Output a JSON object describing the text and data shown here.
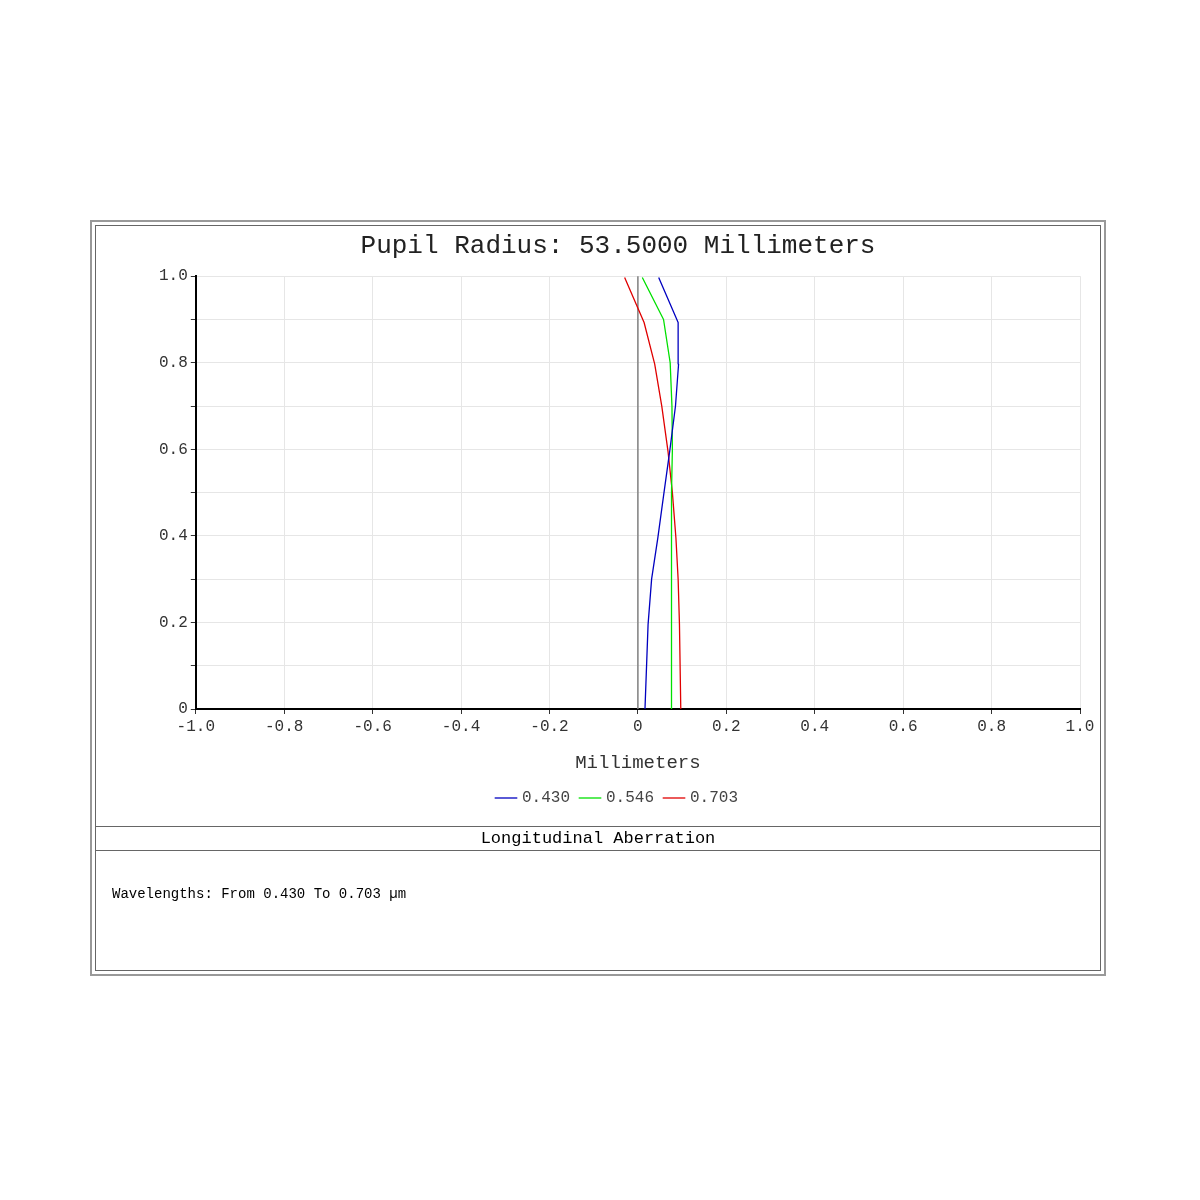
{
  "chart_data": {
    "type": "line",
    "title": "Pupil Radius: 53.5000 Millimeters",
    "xlabel": "Millimeters",
    "xlim": [
      -1,
      1
    ],
    "xticks": [
      {
        "value": -1,
        "label": "-1.0"
      },
      {
        "value": -0.8,
        "label": "-0.8"
      },
      {
        "value": -0.6,
        "label": "-0.6"
      },
      {
        "value": -0.4,
        "label": "-0.4"
      },
      {
        "value": -0.2,
        "label": "-0.2"
      },
      0,
      {
        "value": 0.2,
        "label": "0.2"
      },
      {
        "value": 0.4,
        "label": "0.4"
      },
      {
        "value": 0.6,
        "label": "0.6"
      },
      {
        "value": 0.8,
        "label": "0.8"
      },
      {
        "value": 1,
        "label": "1.0"
      }
    ],
    "ylim": [
      0,
      1
    ],
    "yticks": [
      0,
      {
        "value": 0.1,
        "label": null
      },
      {
        "value": 0.2,
        "label": "0.2"
      },
      {
        "value": 0.3,
        "label": null
      },
      {
        "value": 0.4,
        "label": "0.4"
      },
      {
        "value": 0.5,
        "label": null
      },
      {
        "value": 0.6,
        "label": "0.6"
      },
      {
        "value": 0.7,
        "label": null
      },
      {
        "value": 0.8,
        "label": "0.8"
      },
      {
        "value": 0.9,
        "label": null
      },
      {
        "value": 1,
        "label": "1.0"
      }
    ],
    "grid": true,
    "legend": "bottom",
    "marker": "none",
    "line_style": "solid",
    "ref_lines": [
      {
        "axis": "x",
        "value": 0,
        "color": "#808080"
      }
    ],
    "series": [
      {
        "name": "0.430",
        "color": "#0000c0",
        "x": [
          0.016,
          0.023,
          0.031,
          0.045,
          0.059,
          0.072,
          0.085,
          0.092,
          0.091,
          0.047
        ],
        "values": [
          0,
          0.195,
          0.3,
          0.395,
          0.5,
          0.596,
          0.7,
          0.797,
          0.893,
          0.997
        ]
      },
      {
        "name": "0.546",
        "color": "#00e000",
        "x": [
          0.075,
          0.075,
          0.076,
          0.077,
          0.078,
          0.077,
          0.073,
          0.058,
          0.01
        ],
        "values": [
          0,
          0.2,
          0.4,
          0.5,
          0.6,
          0.7,
          0.8,
          0.9,
          0.997
        ]
      },
      {
        "name": "0.703",
        "color": "#e00000",
        "x": [
          0.097,
          0.094,
          0.091,
          0.086,
          0.078,
          0.068,
          0.054,
          0.038,
          0.014,
          -0.03
        ],
        "values": [
          0,
          0.195,
          0.3,
          0.395,
          0.5,
          0.596,
          0.7,
          0.797,
          0.893,
          0.997
        ]
      }
    ],
    "annotations": [
      "Longitudinal Aberration",
      "Wavelengths: From 0.430 To 0.703 µm"
    ]
  }
}
